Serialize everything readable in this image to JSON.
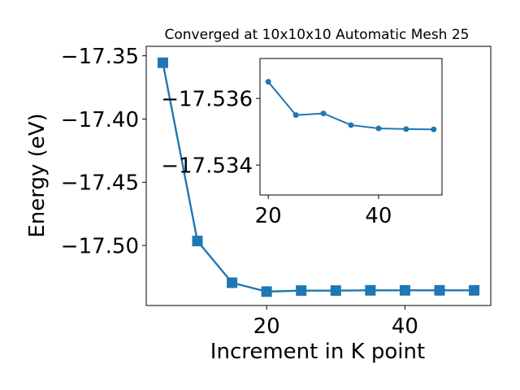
{
  "chart_data": [
    {
      "type": "line",
      "title": "Converged at 10x10x10 Automatic Mesh 25",
      "xlabel": "Increment in K point",
      "ylabel": "Energy (eV)",
      "xlim": [
        2.6,
        52.4
      ],
      "ylim": [
        -17.5475,
        -17.3425
      ],
      "xticks": [
        20,
        40
      ],
      "yticks": [
        -17.35,
        -17.4,
        -17.45,
        -17.5
      ],
      "ytick_labels": [
        "−17.35",
        "−17.40",
        "−17.45",
        "−17.50"
      ],
      "marker": "square",
      "color": "#1f77b4",
      "x": [
        5,
        10,
        15,
        20,
        25,
        30,
        35,
        40,
        45,
        50
      ],
      "y": [
        -17.3555,
        -17.4965,
        -17.5295,
        -17.5365,
        -17.5357,
        -17.5357,
        -17.5355,
        -17.5355,
        -17.5355,
        -17.5355
      ]
    },
    {
      "type": "line",
      "inset": true,
      "xlim": [
        18.5,
        51.5
      ],
      "ylim": [
        -17.5331,
        -17.5372
      ],
      "xticks": [
        20,
        40
      ],
      "yticks": [
        -17.536,
        -17.534
      ],
      "ytick_labels": [
        "−17.536",
        "−17.534"
      ],
      "marker": "circle",
      "color": "#1f77b4",
      "x": [
        20,
        25,
        30,
        35,
        40,
        45,
        50
      ],
      "y": [
        -17.5365,
        -17.5355,
        -17.53555,
        -17.5352,
        -17.5351,
        -17.53508,
        -17.53507
      ]
    }
  ]
}
